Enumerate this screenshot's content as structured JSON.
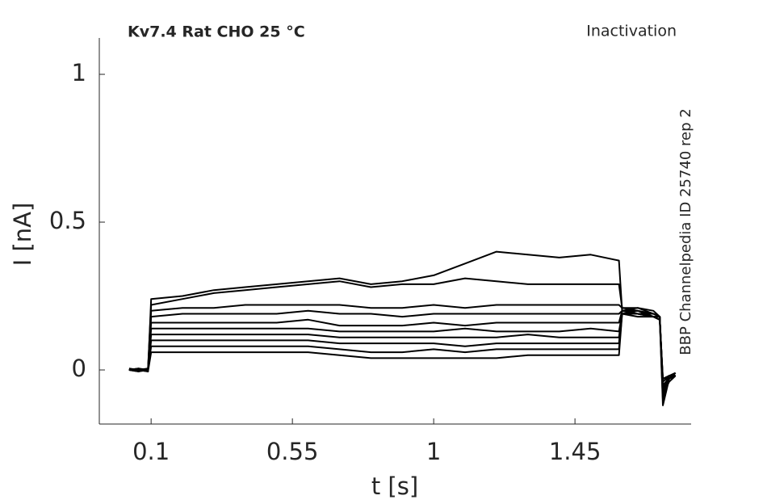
{
  "chart_data": {
    "type": "line",
    "title": "Kv7.4  Rat  CHO  25 °C",
    "subtitle": "Inactivation",
    "annotation": "BBP Channelpedia ID 25740 rep 2",
    "x_label": "t [s]",
    "y_label": "I [nA]",
    "xlim": [
      -0.065,
      1.82
    ],
    "ylim": [
      -0.183,
      1.123
    ],
    "xticks": [
      0.1,
      0.55,
      1,
      1.45
    ],
    "yticks": [
      0,
      0.5,
      1
    ],
    "x": [
      0.03,
      0.06,
      0.09,
      0.1,
      0.2,
      0.3,
      0.4,
      0.5,
      0.6,
      0.7,
      0.8,
      0.9,
      1.0,
      1.1,
      1.2,
      1.3,
      1.4,
      1.5,
      1.59,
      1.6,
      1.65,
      1.7,
      1.72,
      1.73,
      1.75,
      1.77
    ],
    "series": [
      {
        "color": "#000000",
        "values": [
          0,
          0.005,
          -0.005,
          0.24,
          0.25,
          0.27,
          0.28,
          0.29,
          0.3,
          0.31,
          0.29,
          0.3,
          0.32,
          0.36,
          0.4,
          0.39,
          0.38,
          0.39,
          0.37,
          0.2,
          0.21,
          0.19,
          0.18,
          -0.12,
          -0.03,
          -0.01
        ]
      },
      {
        "color": "#000000",
        "values": [
          0,
          -0.005,
          0.005,
          0.22,
          0.24,
          0.26,
          0.27,
          0.28,
          0.29,
          0.3,
          0.28,
          0.29,
          0.29,
          0.31,
          0.3,
          0.29,
          0.29,
          0.29,
          0.29,
          0.21,
          0.2,
          0.18,
          0.17,
          -0.1,
          -0.02,
          -0.02
        ]
      },
      {
        "color": "#000000",
        "values": [
          0,
          0,
          0,
          0.2,
          0.21,
          0.21,
          0.22,
          0.22,
          0.22,
          0.22,
          0.21,
          0.21,
          0.22,
          0.21,
          0.22,
          0.22,
          0.22,
          0.22,
          0.22,
          0.21,
          0.21,
          0.2,
          0.18,
          -0.08,
          -0.04,
          -0.02
        ]
      },
      {
        "color": "#000000",
        "values": [
          0.005,
          0,
          -0.005,
          0.18,
          0.19,
          0.19,
          0.19,
          0.19,
          0.2,
          0.19,
          0.19,
          0.18,
          0.19,
          0.19,
          0.19,
          0.19,
          0.19,
          0.19,
          0.19,
          0.2,
          0.2,
          0.19,
          0.18,
          -0.07,
          -0.03,
          -0.01
        ]
      },
      {
        "color": "#000000",
        "values": [
          0,
          0,
          0,
          0.16,
          0.16,
          0.16,
          0.16,
          0.16,
          0.17,
          0.15,
          0.15,
          0.15,
          0.16,
          0.15,
          0.16,
          0.16,
          0.16,
          0.16,
          0.16,
          0.2,
          0.19,
          0.19,
          0.18,
          -0.06,
          -0.02,
          -0.02
        ]
      },
      {
        "color": "#000000",
        "values": [
          0,
          0.005,
          0,
          0.14,
          0.14,
          0.14,
          0.14,
          0.14,
          0.14,
          0.13,
          0.13,
          0.13,
          0.13,
          0.14,
          0.13,
          0.13,
          0.13,
          0.14,
          0.13,
          0.19,
          0.19,
          0.18,
          0.18,
          -0.05,
          -0.03,
          -0.02
        ]
      },
      {
        "color": "#000000",
        "values": [
          0,
          0,
          0.005,
          0.12,
          0.12,
          0.12,
          0.12,
          0.12,
          0.12,
          0.11,
          0.11,
          0.11,
          0.11,
          0.11,
          0.11,
          0.12,
          0.11,
          0.11,
          0.11,
          0.19,
          0.2,
          0.19,
          0.18,
          -0.04,
          -0.02,
          -0.02
        ]
      },
      {
        "color": "#000000",
        "values": [
          0,
          -0.005,
          0,
          0.1,
          0.1,
          0.1,
          0.1,
          0.1,
          0.1,
          0.09,
          0.09,
          0.09,
          0.09,
          0.08,
          0.09,
          0.09,
          0.09,
          0.09,
          0.09,
          0.2,
          0.19,
          0.18,
          0.18,
          -0.04,
          -0.02,
          -0.01
        ]
      },
      {
        "color": "#000000",
        "values": [
          0,
          0,
          0,
          0.08,
          0.08,
          0.08,
          0.08,
          0.08,
          0.08,
          0.07,
          0.06,
          0.06,
          0.07,
          0.06,
          0.07,
          0.07,
          0.07,
          0.07,
          0.07,
          0.19,
          0.19,
          0.18,
          0.17,
          -0.03,
          -0.02,
          -0.02
        ]
      },
      {
        "color": "#000000",
        "values": [
          0,
          0,
          -0.005,
          0.06,
          0.06,
          0.06,
          0.06,
          0.06,
          0.06,
          0.05,
          0.04,
          0.04,
          0.04,
          0.04,
          0.04,
          0.05,
          0.05,
          0.05,
          0.05,
          0.19,
          0.18,
          0.18,
          0.17,
          -0.03,
          -0.02,
          -0.02
        ]
      }
    ]
  }
}
